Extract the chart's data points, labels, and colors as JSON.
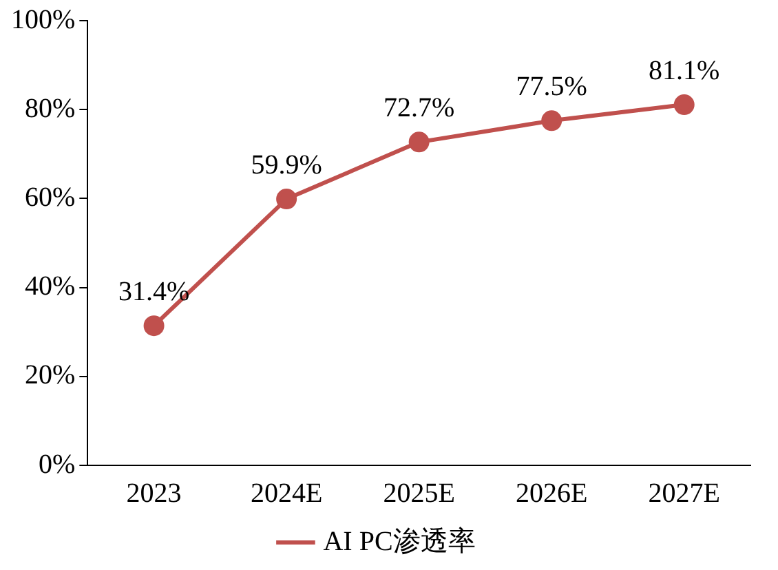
{
  "chart_data": {
    "type": "line",
    "categories": [
      "2023",
      "2024E",
      "2025E",
      "2026E",
      "2027E"
    ],
    "series": [
      {
        "name": "AI PC渗透率",
        "color": "#c0504d",
        "values": [
          31.4,
          59.9,
          72.7,
          77.5,
          81.1
        ],
        "value_labels": [
          "31.4%",
          "59.9%",
          "72.7%",
          "77.5%",
          "81.1%"
        ]
      }
    ],
    "ylim": [
      0,
      100
    ],
    "yticks": [
      {
        "value": 0,
        "label": "0%"
      },
      {
        "value": 20,
        "label": "20%"
      },
      {
        "value": 40,
        "label": "40%"
      },
      {
        "value": 60,
        "label": "60%"
      },
      {
        "value": 80,
        "label": "80%"
      },
      {
        "value": 100,
        "label": "100%"
      }
    ],
    "grid": false,
    "legend": "bottom",
    "marker": "circle",
    "line_style": "solid"
  }
}
